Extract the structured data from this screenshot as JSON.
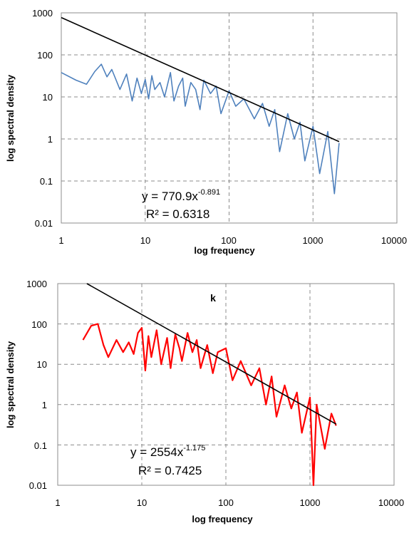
{
  "chart_data": [
    {
      "type": "line",
      "title": "",
      "xlabel": "log frequency",
      "ylabel": "log spectral density",
      "xscale": "log",
      "yscale": "log",
      "xlim": [
        1,
        10000
      ],
      "ylim": [
        0.01,
        1000
      ],
      "x_ticks": [
        "1",
        "10",
        "100",
        "1000",
        "10000"
      ],
      "y_ticks": [
        "0.01",
        "0.1",
        "1",
        "10",
        "100",
        "1000"
      ],
      "grid": true,
      "series": [
        {
          "color": "#4f81bd",
          "x": [
            1,
            1.5,
            2,
            2.5,
            3,
            3.5,
            4,
            5,
            6,
            7,
            8,
            9,
            10,
            11,
            12,
            13,
            15,
            17,
            20,
            22,
            25,
            28,
            30,
            35,
            40,
            45,
            50,
            60,
            70,
            80,
            100,
            120,
            150,
            200,
            250,
            300,
            350,
            400,
            500,
            600,
            700,
            800,
            1000,
            1200,
            1500,
            1800,
            2048
          ],
          "y": [
            38,
            25,
            20,
            40,
            60,
            30,
            45,
            15,
            35,
            8,
            28,
            12,
            26,
            9,
            32,
            15,
            22,
            10,
            38,
            8,
            18,
            28,
            6,
            22,
            15,
            5,
            25,
            12,
            18,
            4,
            14,
            6,
            9,
            3,
            7,
            2,
            5,
            0.5,
            4,
            1,
            2.5,
            0.3,
            2,
            0.15,
            1.5,
            0.05,
            0.8
          ],
          "trendline_equation": "y = 770.9x",
          "trendline_exponent": "-0.891",
          "r_squared": "R² = 0.6318",
          "trendline": {
            "a": 770.9,
            "b": -0.891
          }
        }
      ]
    },
    {
      "type": "line",
      "title": "k",
      "xlabel": "log frequency",
      "ylabel": "log spectral density",
      "xscale": "log",
      "yscale": "log",
      "xlim": [
        1,
        10000
      ],
      "ylim": [
        0.01,
        1000
      ],
      "x_ticks": [
        "1",
        "10",
        "100",
        "1000",
        "10000"
      ],
      "y_ticks": [
        "0.01",
        "0.1",
        "1",
        "10",
        "100",
        "1000"
      ],
      "grid": true,
      "series": [
        {
          "color": "#ff0000",
          "x": [
            2,
            2.5,
            3,
            3.5,
            4,
            5,
            6,
            7,
            8,
            9,
            10,
            11,
            12,
            13,
            15,
            17,
            20,
            22,
            25,
            28,
            30,
            35,
            40,
            45,
            50,
            60,
            70,
            80,
            100,
            120,
            150,
            200,
            250,
            300,
            350,
            400,
            500,
            600,
            700,
            800,
            1000,
            1100,
            1200,
            1500,
            1800,
            2048
          ],
          "y": [
            40,
            90,
            100,
            30,
            15,
            40,
            20,
            35,
            18,
            60,
            80,
            7,
            50,
            15,
            70,
            10,
            45,
            8,
            55,
            25,
            12,
            60,
            20,
            40,
            8,
            30,
            6,
            20,
            25,
            4,
            12,
            3,
            8,
            1,
            5,
            0.5,
            3,
            0.8,
            2,
            0.2,
            1.5,
            0.01,
            1,
            0.08,
            0.6,
            0.3
          ],
          "trendline_equation": "y = 2554x",
          "trendline_exponent": "-1.175",
          "r_squared": "R² = 0.7425",
          "trendline": {
            "a": 2554,
            "b": -1.175
          }
        }
      ]
    }
  ]
}
